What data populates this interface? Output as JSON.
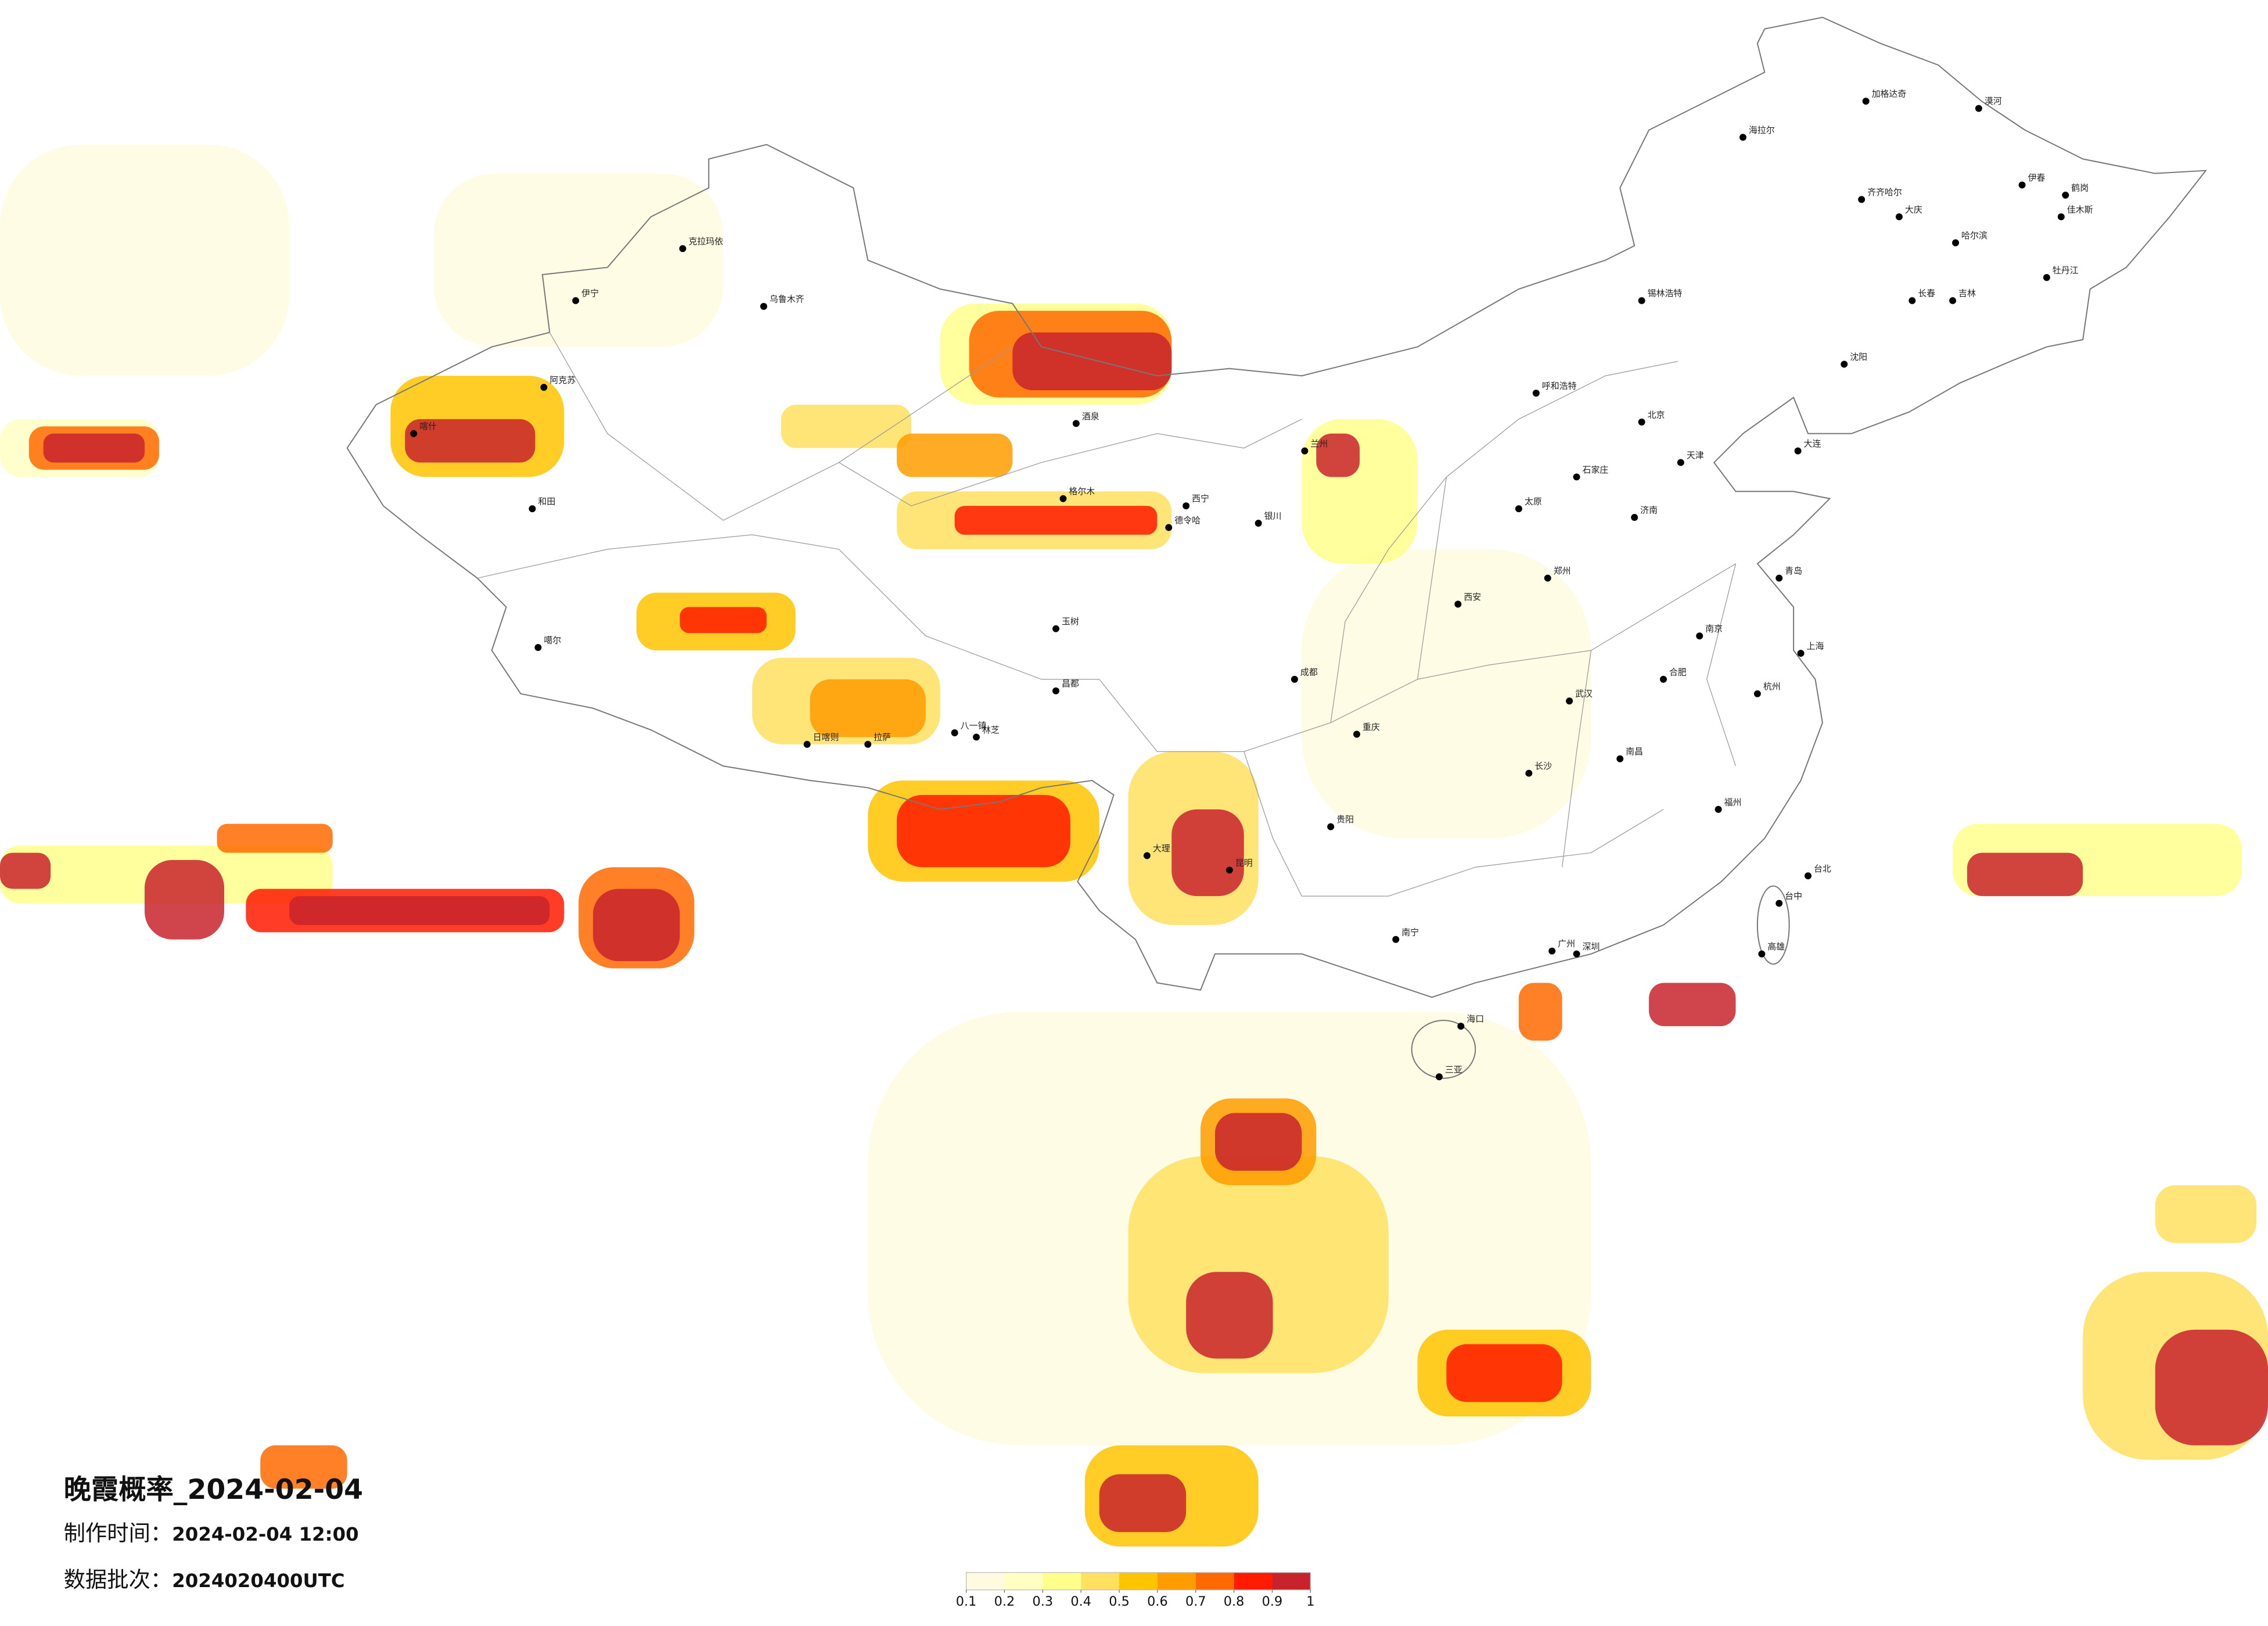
{
  "title": "晚霞概率_2024-02-04",
  "made_time": {
    "label": "制作时间：",
    "value": "2024-02-04 12:00"
  },
  "batch": {
    "label": "数据批次：",
    "value": "2024020400UTC"
  },
  "legend": {
    "colors": [
      "#fffbe0",
      "#ffffc4",
      "#ffff8c",
      "#ffe060",
      "#ffc400",
      "#ff9c00",
      "#ff6a00",
      "#ff1a00",
      "#c8232d"
    ],
    "ticks": [
      0.1,
      0.2,
      0.3,
      0.4,
      0.5,
      0.6,
      0.7,
      0.8,
      0.9,
      1
    ]
  },
  "cities": [
    "漠河",
    "加格达奇",
    "海拉尔",
    "伊春",
    "鹤岗",
    "齐齐哈尔",
    "大庆",
    "哈尔滨",
    "佳木斯",
    "牡丹江",
    "长春",
    "吉林",
    "沈阳",
    "锡林浩特",
    "呼和浩特",
    "北京",
    "天津",
    "石家庄",
    "太原",
    "济南",
    "郑州",
    "西安",
    "兰州",
    "西宁",
    "银川",
    "乌鲁木齐",
    "克拉玛依",
    "伊宁",
    "阿克苏",
    "和田",
    "喀什",
    "噶尔",
    "日喀则",
    "拉萨",
    "八一镇",
    "林芝",
    "成都",
    "重庆",
    "贵阳",
    "昆明",
    "大理",
    "南宁",
    "广州",
    "深圳",
    "海口",
    "三亚",
    "长沙",
    "武汉",
    "南昌",
    "福州",
    "台北",
    "台中",
    "高雄",
    "杭州",
    "上海",
    "南京",
    "合肥",
    "青岛",
    "大连",
    "酒泉",
    "格尔木",
    "德令哈",
    "玉树",
    "昌都"
  ]
}
